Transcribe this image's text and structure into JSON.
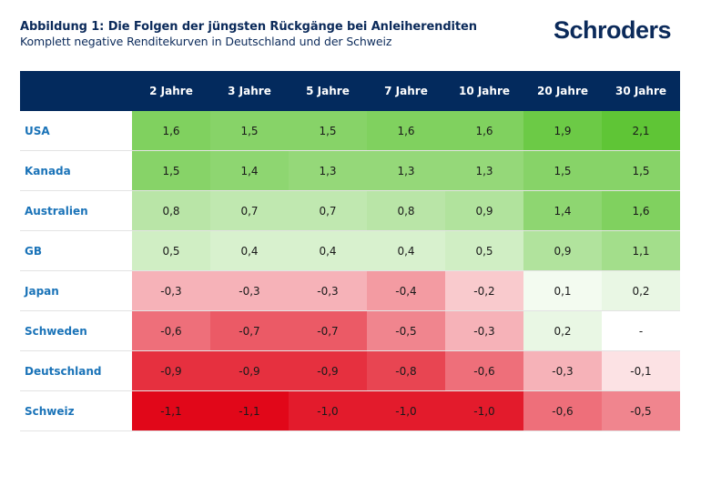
{
  "header": {
    "title": "Abbildung 1: Die Folgen der jüngsten Rückgänge bei Anleiherenditen",
    "subtitle": "Komplett negative Renditekurven in Deutschland und der Schweiz",
    "logo": "Schroders"
  },
  "colors": {
    "header_bg": "#032a5d",
    "country_text": "#1a73b8",
    "title_text": "#0b2a5a",
    "positive_max": "#5fc536",
    "negative_max": "#e10719"
  },
  "chart_data": {
    "type": "heatmap",
    "title": "Abbildung 1: Die Folgen der jüngsten Rückgänge bei Anleiherenditen",
    "subtitle": "Komplett negative Renditekurven in Deutschland und der Schweiz",
    "columns": [
      "2 Jahre",
      "3 Jahre",
      "5 Jahre",
      "7 Jahre",
      "10 Jahre",
      "20 Jahre",
      "30 Jahre"
    ],
    "rows": [
      {
        "label": "USA",
        "values": [
          "1,6",
          "1,5",
          "1,5",
          "1,6",
          "1,6",
          "1,9",
          "2,1"
        ]
      },
      {
        "label": "Kanada",
        "values": [
          "1,5",
          "1,4",
          "1,3",
          "1,3",
          "1,3",
          "1,5",
          "1,5"
        ]
      },
      {
        "label": "Australien",
        "values": [
          "0,8",
          "0,7",
          "0,7",
          "0,8",
          "0,9",
          "1,4",
          "1,6"
        ]
      },
      {
        "label": "GB",
        "values": [
          "0,5",
          "0,4",
          "0,4",
          "0,4",
          "0,5",
          "0,9",
          "1,1"
        ]
      },
      {
        "label": "Japan",
        "values": [
          "-0,3",
          "-0,3",
          "-0,3",
          "-0,4",
          "-0,2",
          "0,1",
          "0,2"
        ]
      },
      {
        "label": "Schweden",
        "values": [
          "-0,6",
          "-0,7",
          "-0,7",
          "-0,5",
          "-0,3",
          "0,2",
          "-"
        ]
      },
      {
        "label": "Deutschland",
        "values": [
          "-0,9",
          "-0,9",
          "-0,9",
          "-0,8",
          "-0,6",
          "-0,3",
          "-0,1"
        ]
      },
      {
        "label": "Schweiz",
        "values": [
          "-1,1",
          "-1,1",
          "-1,0",
          "-1,0",
          "-1,0",
          "-0,6",
          "-0,5"
        ]
      }
    ],
    "color_scale": {
      "min": -1.1,
      "max": 2.1,
      "negative": "red",
      "positive": "green"
    }
  }
}
